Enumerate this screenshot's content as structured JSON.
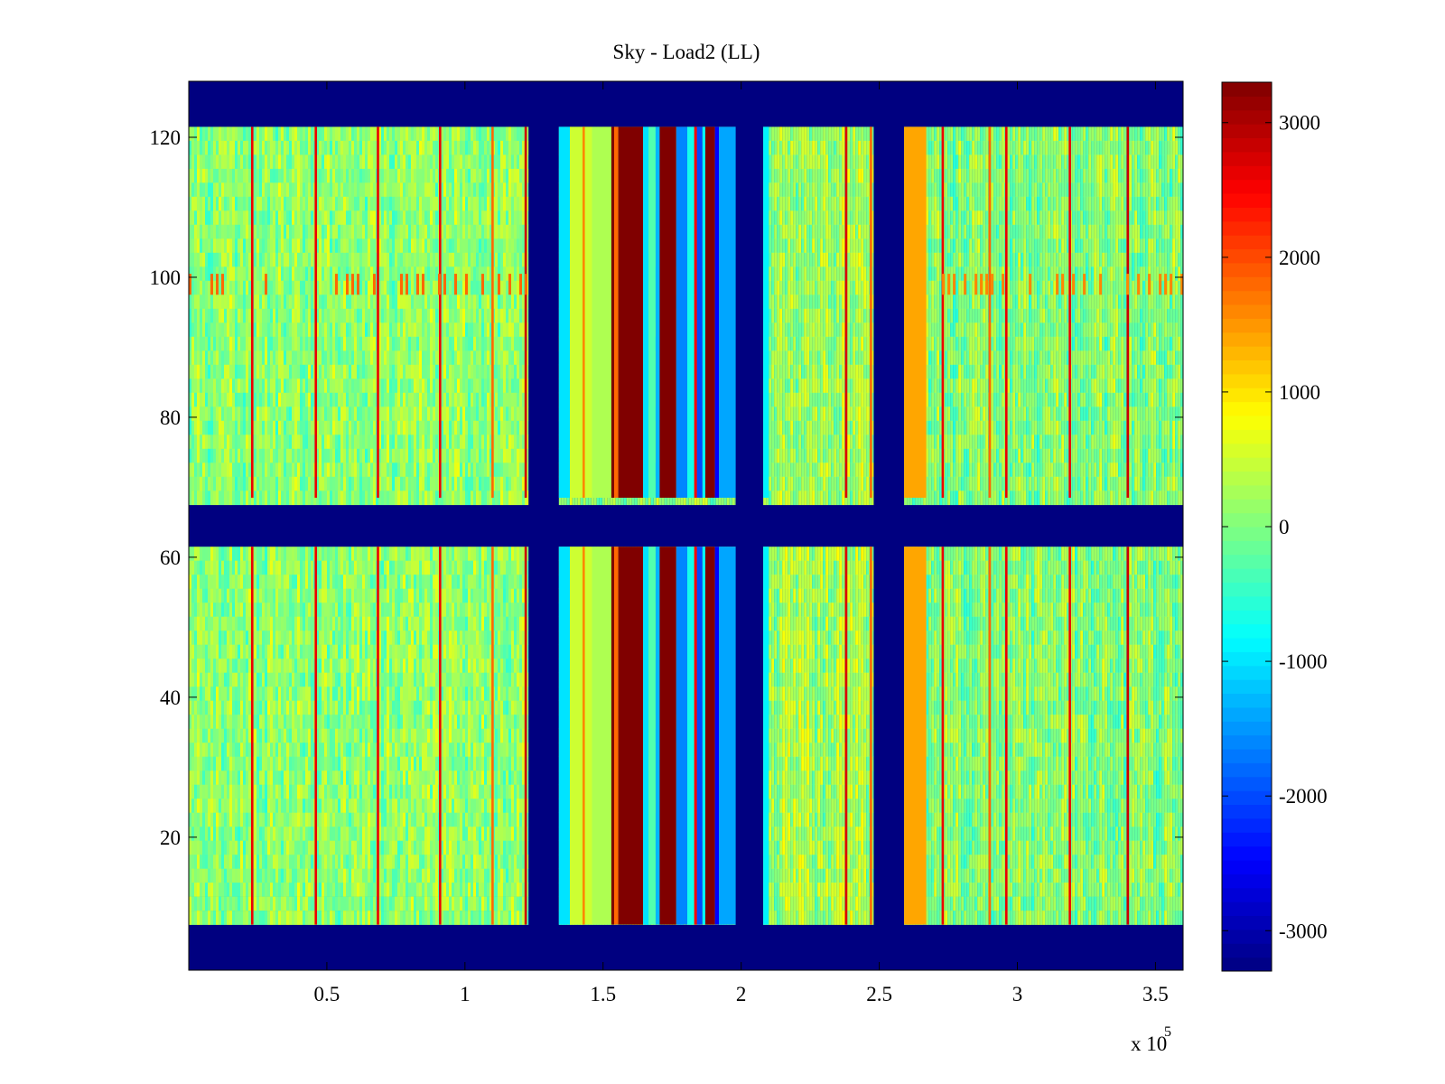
{
  "chart_data": {
    "type": "heatmap",
    "title": "Sky - Load2 (LL)",
    "xlabel": "",
    "ylabel": "",
    "x_multiplier_label": {
      "base": "x 10",
      "exponent": "5"
    },
    "xlim": [
      0,
      360000
    ],
    "ylim": [
      1,
      128
    ],
    "x_ticks": [
      50000,
      100000,
      150000,
      200000,
      250000,
      300000,
      350000
    ],
    "x_tick_labels": [
      "0.5",
      "1",
      "1.5",
      "2",
      "2.5",
      "3",
      "3.5"
    ],
    "y_ticks": [
      20,
      40,
      60,
      80,
      100,
      120
    ],
    "y_tick_labels": [
      "20",
      "40",
      "60",
      "80",
      "100",
      "120"
    ],
    "colormap": "jet",
    "clim": [
      -3300,
      3300
    ],
    "colorbar_ticks": [
      3000,
      2000,
      1000,
      0,
      -1000,
      -2000,
      -3000
    ],
    "colorbar_tick_labels": [
      "3000",
      "2000",
      "1000",
      "0",
      "-1000",
      "-2000",
      "-3000"
    ],
    "background_value": -3300,
    "background_value_note": "dark blue regions",
    "row_blocks": [
      {
        "y_from": 8,
        "y_to": 61
      },
      {
        "y_from": 69,
        "y_to": 121
      }
    ],
    "row_gaps": [
      {
        "y_from": 1,
        "y_to": 7
      },
      {
        "y_from": 62,
        "y_to": 68
      },
      {
        "y_from": 122,
        "y_to": 128
      }
    ],
    "column_gaps": [
      {
        "x_from": 123000,
        "x_to": 134000
      },
      {
        "x_from": 198000,
        "x_to": 208000
      },
      {
        "x_from": 248000,
        "x_to": 259000
      }
    ],
    "segments": [
      {
        "x_from": 0,
        "x_to": 123000,
        "base_value": 100
      },
      {
        "x_from": 134000,
        "x_to": 198000,
        "base_value": 100
      },
      {
        "x_from": 208000,
        "x_to": 248000,
        "base_value": 250
      },
      {
        "x_from": 259000,
        "x_to": 360000,
        "base_value": 50
      }
    ],
    "bands": [
      {
        "x_from": 134000,
        "x_to": 138000,
        "value": -1000
      },
      {
        "x_from": 138000,
        "x_to": 146000,
        "value": 500
      },
      {
        "x_from": 146000,
        "x_to": 153000,
        "value": 300
      },
      {
        "x_from": 153000,
        "x_to": 154000,
        "value": 3300
      },
      {
        "x_from": 154000,
        "x_to": 155500,
        "value": 1800
      },
      {
        "x_from": 155500,
        "x_to": 164500,
        "value": 3300
      },
      {
        "x_from": 164500,
        "x_to": 166500,
        "value": -1000
      },
      {
        "x_from": 166500,
        "x_to": 169000,
        "value": -300
      },
      {
        "x_from": 169000,
        "x_to": 170500,
        "value": -1300
      },
      {
        "x_from": 170500,
        "x_to": 176500,
        "value": 3300
      },
      {
        "x_from": 176500,
        "x_to": 180500,
        "value": -1600
      },
      {
        "x_from": 180500,
        "x_to": 183000,
        "value": -700
      },
      {
        "x_from": 183000,
        "x_to": 184000,
        "value": 2500
      },
      {
        "x_from": 184000,
        "x_to": 186000,
        "value": -2000
      },
      {
        "x_from": 186000,
        "x_to": 187000,
        "value": -800
      },
      {
        "x_from": 187000,
        "x_to": 190500,
        "value": 3300
      },
      {
        "x_from": 190500,
        "x_to": 192000,
        "value": -2500
      },
      {
        "x_from": 192000,
        "x_to": 198000,
        "value": -1400
      },
      {
        "x_from": 208000,
        "x_to": 210000,
        "value": -900
      },
      {
        "x_from": 259000,
        "x_to": 267000,
        "value": 1400
      }
    ],
    "lines": [
      {
        "x": 23000,
        "value": 2600
      },
      {
        "x": 46000,
        "value": 2600
      },
      {
        "x": 68500,
        "value": 2600
      },
      {
        "x": 91000,
        "value": 2600
      },
      {
        "x": 110000,
        "value": 1800
      },
      {
        "x": 122000,
        "value": 2800
      },
      {
        "x": 143000,
        "value": 1600
      },
      {
        "x": 238000,
        "value": 2700
      },
      {
        "x": 247000,
        "value": 1800
      },
      {
        "x": 273000,
        "value": 2600
      },
      {
        "x": 290000,
        "value": 1800
      },
      {
        "x": 296000,
        "value": 2600
      },
      {
        "x": 319000,
        "value": 2600
      },
      {
        "x": 340000,
        "value": 2800
      }
    ],
    "row_features": [
      {
        "y_from": 98,
        "y_to": 100,
        "x_from": 0,
        "x_to": 123000,
        "value": 1800
      },
      {
        "y_from": 98,
        "y_to": 100,
        "x_from": 259000,
        "x_to": 360000,
        "value": 1600
      }
    ]
  }
}
